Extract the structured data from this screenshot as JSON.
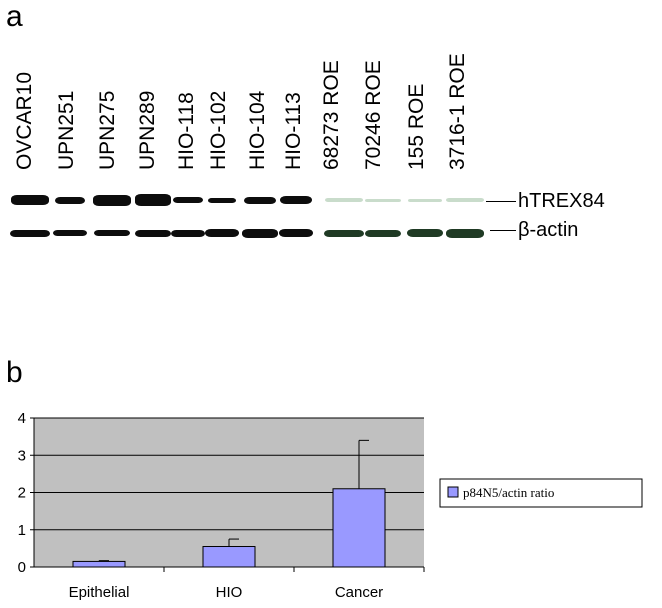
{
  "panel_a": {
    "letter": "a",
    "lanes": [
      "OVCAR10",
      "UPN251",
      "UPN275",
      "UPN289",
      "HIO-118",
      "HIO-102",
      "HIO-104",
      "HIO-113",
      "68273 ROE",
      "70246 ROE",
      "155 ROE",
      "3716-1 ROE"
    ],
    "band_labels": {
      "top": "hTREX84",
      "bottom": "β-actin"
    },
    "colors": {
      "dark_band": "#0d0d0d",
      "green_faint": "#c9dccb",
      "green_dark": "#1f3a24"
    }
  },
  "panel_b": {
    "letter": "b"
  },
  "chart_data": {
    "type": "bar",
    "categories": [
      "Epithelial",
      "HIO",
      "Cancer"
    ],
    "series": [
      {
        "name": "p84N5/actin ratio",
        "values": [
          0.15,
          0.55,
          2.1
        ],
        "error": [
          0.02,
          0.2,
          1.3
        ]
      }
    ],
    "y_ticks": [
      "0",
      "1",
      "2",
      "3",
      "4"
    ],
    "ylim": [
      0,
      4
    ],
    "grid": true,
    "legend_position": "right",
    "colors": {
      "bar": "#9999ff",
      "plot_bg": "#c0c0c0",
      "grid": "#000000"
    }
  }
}
